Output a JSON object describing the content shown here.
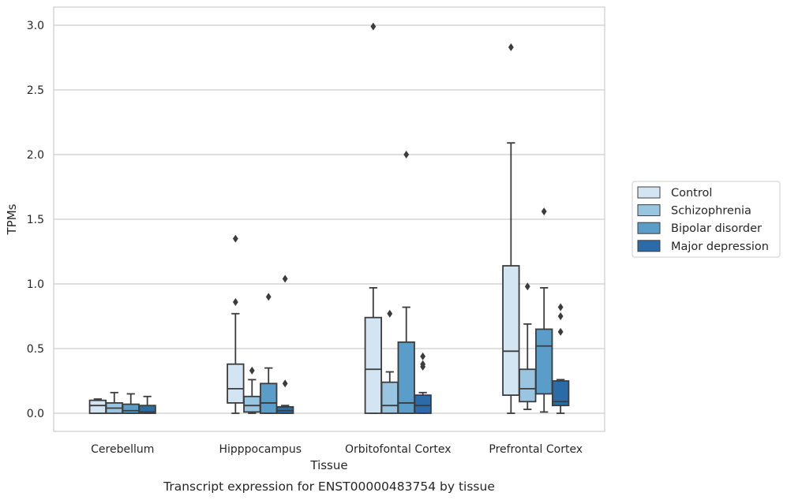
{
  "chart_data": {
    "type": "box",
    "title": "",
    "caption": "Transcript expression for ENST00000483754 by tissue",
    "xlabel": "Tissue",
    "ylabel": "TPMs",
    "ylim": [
      -0.14,
      3.14
    ],
    "yticks": [
      0.0,
      0.5,
      1.0,
      1.5,
      2.0,
      2.5,
      3.0
    ],
    "ytick_labels": [
      "0.0",
      "0.5",
      "1.0",
      "1.5",
      "2.0",
      "2.5",
      "3.0"
    ],
    "grid": "horizontal",
    "legend_position": "right",
    "categories": [
      "Cerebellum",
      "Hipppocampus",
      "Orbitofontal Cortex",
      "Prefrontal Cortex"
    ],
    "series": [
      {
        "name": "Control",
        "color": "#d3e4f3",
        "boxes": [
          {
            "whisker_low": 0.0,
            "q1": 0.0,
            "median": 0.06,
            "q3": 0.1,
            "whisker_high": 0.11,
            "outliers": []
          },
          {
            "whisker_low": 0.0,
            "q1": 0.08,
            "median": 0.19,
            "q3": 0.38,
            "whisker_high": 0.77,
            "outliers": [
              0.86,
              1.35
            ]
          },
          {
            "whisker_low": 0.0,
            "q1": 0.0,
            "median": 0.34,
            "q3": 0.74,
            "whisker_high": 0.97,
            "outliers": [
              2.99
            ]
          },
          {
            "whisker_low": 0.0,
            "q1": 0.14,
            "median": 0.48,
            "q3": 1.14,
            "whisker_high": 2.09,
            "outliers": [
              2.83
            ]
          }
        ]
      },
      {
        "name": "Schizophrenia",
        "color": "#9ac5e0",
        "boxes": [
          {
            "whisker_low": 0.0,
            "q1": 0.0,
            "median": 0.04,
            "q3": 0.08,
            "whisker_high": 0.16,
            "outliers": []
          },
          {
            "whisker_low": 0.0,
            "q1": 0.01,
            "median": 0.06,
            "q3": 0.13,
            "whisker_high": 0.26,
            "outliers": [
              0.33
            ]
          },
          {
            "whisker_low": 0.0,
            "q1": 0.0,
            "median": 0.06,
            "q3": 0.24,
            "whisker_high": 0.32,
            "outliers": [
              0.77
            ]
          },
          {
            "whisker_low": 0.03,
            "q1": 0.09,
            "median": 0.19,
            "q3": 0.34,
            "whisker_high": 0.69,
            "outliers": [
              0.98
            ]
          }
        ]
      },
      {
        "name": "Bipolar disorder",
        "color": "#5a9dc9",
        "boxes": [
          {
            "whisker_low": 0.0,
            "q1": 0.0,
            "median": 0.02,
            "q3": 0.07,
            "whisker_high": 0.15,
            "outliers": []
          },
          {
            "whisker_low": 0.0,
            "q1": 0.0,
            "median": 0.08,
            "q3": 0.23,
            "whisker_high": 0.35,
            "outliers": [
              0.9
            ]
          },
          {
            "whisker_low": 0.0,
            "q1": 0.0,
            "median": 0.08,
            "q3": 0.55,
            "whisker_high": 0.82,
            "outliers": [
              2.0
            ]
          },
          {
            "whisker_low": 0.01,
            "q1": 0.15,
            "median": 0.52,
            "q3": 0.65,
            "whisker_high": 0.97,
            "outliers": [
              1.56
            ]
          }
        ]
      },
      {
        "name": "Major depression",
        "color": "#2b6ca8",
        "boxes": [
          {
            "whisker_low": 0.0,
            "q1": 0.0,
            "median": 0.01,
            "q3": 0.06,
            "whisker_high": 0.13,
            "outliers": []
          },
          {
            "whisker_low": 0.0,
            "q1": 0.0,
            "median": 0.02,
            "q3": 0.05,
            "whisker_high": 0.06,
            "outliers": [
              0.23,
              1.04
            ]
          },
          {
            "whisker_low": 0.0,
            "q1": 0.0,
            "median": 0.06,
            "q3": 0.14,
            "whisker_high": 0.16,
            "outliers": [
              0.36,
              0.38,
              0.44
            ]
          },
          {
            "whisker_low": 0.0,
            "q1": 0.06,
            "median": 0.09,
            "q3": 0.25,
            "whisker_high": 0.26,
            "outliers": [
              0.63,
              0.75,
              0.82
            ]
          }
        ]
      }
    ]
  }
}
